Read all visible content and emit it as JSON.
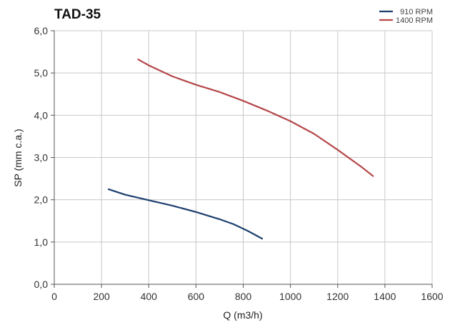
{
  "chart_data": {
    "type": "line",
    "title": "TAD-35",
    "xlabel": "Q (m3/h)",
    "ylabel": "SP  (mm c.a.)",
    "xlim": [
      0,
      1600
    ],
    "ylim": [
      0,
      6
    ],
    "x_ticks": [
      "0",
      "200",
      "400",
      "600",
      "800",
      "1000",
      "1200",
      "1400",
      "1600"
    ],
    "y_ticks": [
      "0,0",
      "1,0",
      "2,0",
      "3,0",
      "4,0",
      "5,0",
      "6,0"
    ],
    "grid": true,
    "legend_position": "top-right",
    "series": [
      {
        "name": "910 RPM",
        "color": "#1c3f6e",
        "points": [
          [
            230,
            2.25
          ],
          [
            300,
            2.12
          ],
          [
            400,
            1.99
          ],
          [
            500,
            1.86
          ],
          [
            600,
            1.71
          ],
          [
            700,
            1.54
          ],
          [
            760,
            1.42
          ],
          [
            820,
            1.26
          ],
          [
            880,
            1.08
          ]
        ]
      },
      {
        "name": "1400 RPM",
        "color": "#b5474a",
        "points": [
          [
            355,
            5.32
          ],
          [
            400,
            5.18
          ],
          [
            500,
            4.92
          ],
          [
            600,
            4.72
          ],
          [
            700,
            4.55
          ],
          [
            800,
            4.34
          ],
          [
            900,
            4.11
          ],
          [
            1000,
            3.86
          ],
          [
            1100,
            3.56
          ],
          [
            1200,
            3.18
          ],
          [
            1300,
            2.78
          ],
          [
            1350,
            2.56
          ]
        ]
      }
    ]
  }
}
